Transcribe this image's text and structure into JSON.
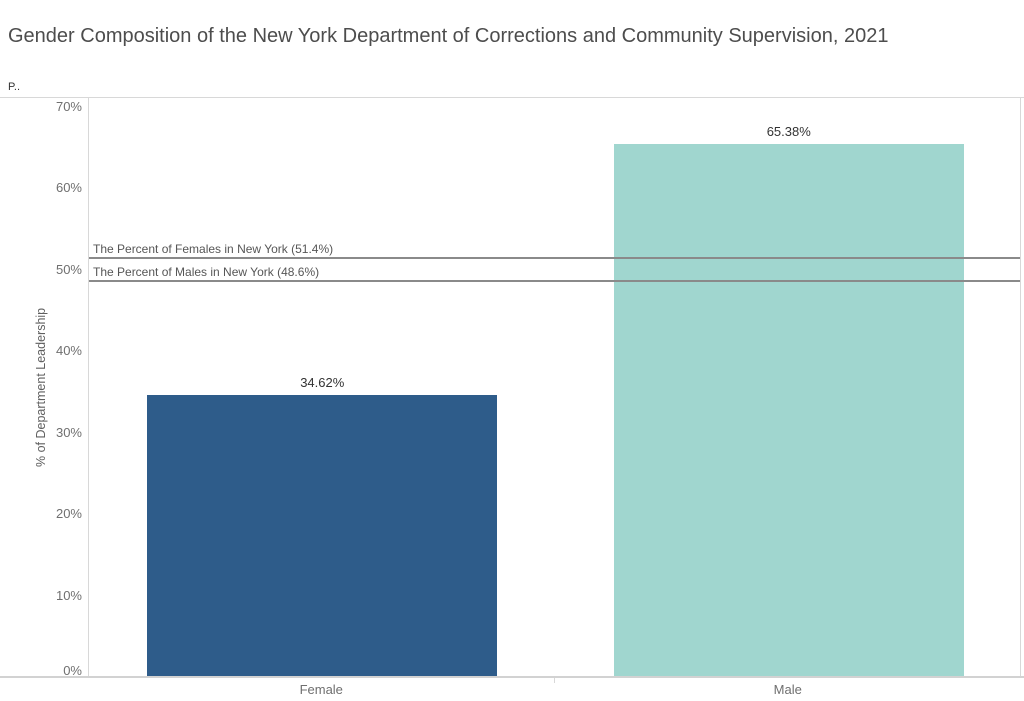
{
  "title": "Gender Composition of the New York Department of Corrections and Community Supervision, 2021",
  "pane_label": "P..",
  "chart_data": {
    "type": "bar",
    "title": "Gender Composition of the New York Department of Corrections and Community Supervision, 2021",
    "categories": [
      "Female",
      "Male"
    ],
    "values": [
      34.62,
      65.38
    ],
    "value_labels": [
      "34.62%",
      "65.38%"
    ],
    "bar_colors": [
      "#2E5C8A",
      "#A0D6CF"
    ],
    "xlabel": "",
    "ylabel": "% of Department Leadership",
    "y_ticks": [
      0,
      10,
      20,
      30,
      40,
      50,
      60,
      70
    ],
    "y_tick_labels": [
      "0%",
      "10%",
      "20%",
      "30%",
      "40%",
      "50%",
      "60%",
      "70%"
    ],
    "ylim": [
      0,
      71.2
    ],
    "grid": false,
    "legend": "none",
    "reference_lines": [
      {
        "label": "The Percent of Females in New York (51.4%)",
        "value": 51.4
      },
      {
        "label": "The Percent of Males in New York (48.6%)",
        "value": 48.6
      }
    ],
    "reference_line_color": "#8A8A8A"
  }
}
